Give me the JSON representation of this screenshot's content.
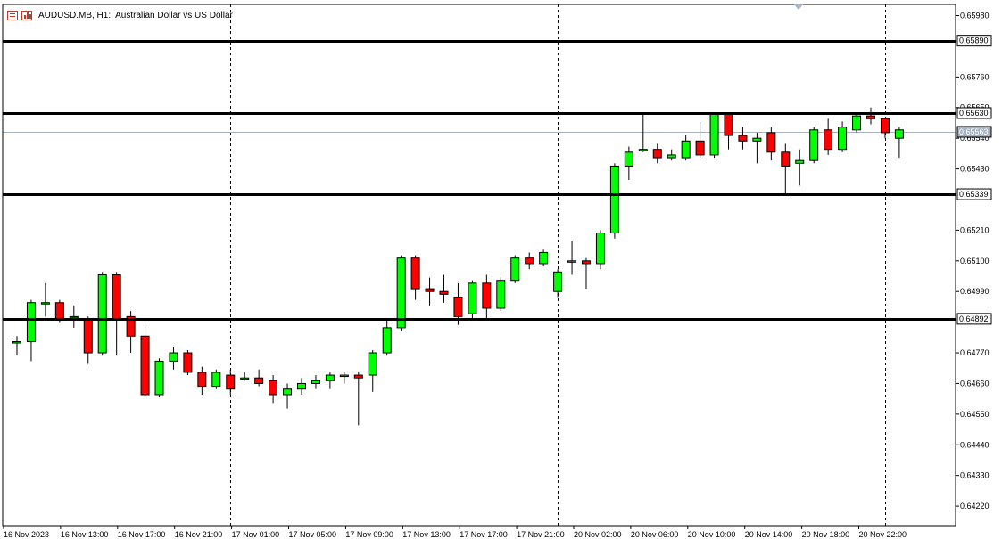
{
  "header": {
    "symbol": "AUDUSD.MB, H1:",
    "description": "Australian Dollar vs US Dollar",
    "icons": [
      "chart-properties-icon",
      "bar-chart-icon"
    ]
  },
  "colors": {
    "bull": "#00ff00",
    "bear": "#ff0000",
    "outline": "#000000",
    "background": "#ffffff",
    "grid": "#000000",
    "bid_line": "#a8b4c0"
  },
  "chart_data": {
    "type": "candlestick",
    "symbol": "AUDUSD.MB",
    "timeframe": "H1",
    "ylim": [
      0.6415,
      0.6602
    ],
    "y_ticks": [
      "0.65980",
      "0.65760",
      "0.65650",
      "0.65540",
      "0.65430",
      "0.65210",
      "0.65100",
      "0.64990",
      "0.64770",
      "0.64660",
      "0.64550",
      "0.64440",
      "0.64330",
      "0.64220"
    ],
    "x_tick_labels": [
      "16 Nov 2023",
      "16 Nov 13:00",
      "16 Nov 17:00",
      "16 Nov 21:00",
      "17 Nov 01:00",
      "17 Nov 05:00",
      "17 Nov 09:00",
      "17 Nov 13:00",
      "17 Nov 17:00",
      "17 Nov 21:00",
      "20 Nov 02:00",
      "20 Nov 06:00",
      "20 Nov 10:00",
      "20 Nov 14:00",
      "20 Nov 18:00",
      "20 Nov 22:00"
    ],
    "horizontal_levels": [
      {
        "price": 0.6589,
        "label": "0.65890"
      },
      {
        "price": 0.6563,
        "label": "0.65630"
      },
      {
        "price": 0.65339,
        "label": "0.65339"
      },
      {
        "price": 0.64892,
        "label": "0.64892"
      }
    ],
    "current_price": {
      "price": 0.65563,
      "label": "0.65563"
    },
    "period_separators_at_candle": [
      15,
      38,
      61
    ],
    "candles": [
      {
        "o": 0.6481,
        "h": 0.6483,
        "l": 0.6476,
        "c": 0.6481
      },
      {
        "o": 0.6481,
        "h": 0.6496,
        "l": 0.6474,
        "c": 0.6495
      },
      {
        "o": 0.6495,
        "h": 0.6502,
        "l": 0.649,
        "c": 0.6495
      },
      {
        "o": 0.6495,
        "h": 0.6496,
        "l": 0.6488,
        "c": 0.6489
      },
      {
        "o": 0.649,
        "h": 0.6494,
        "l": 0.6486,
        "c": 0.649
      },
      {
        "o": 0.6489,
        "h": 0.649,
        "l": 0.6473,
        "c": 0.6477
      },
      {
        "o": 0.6477,
        "h": 0.6506,
        "l": 0.6476,
        "c": 0.6505
      },
      {
        "o": 0.6505,
        "h": 0.6506,
        "l": 0.6476,
        "c": 0.6489
      },
      {
        "o": 0.649,
        "h": 0.6492,
        "l": 0.6477,
        "c": 0.6483
      },
      {
        "o": 0.6483,
        "h": 0.6487,
        "l": 0.6461,
        "c": 0.6462
      },
      {
        "o": 0.6462,
        "h": 0.6475,
        "l": 0.6461,
        "c": 0.6474
      },
      {
        "o": 0.6474,
        "h": 0.6479,
        "l": 0.6471,
        "c": 0.6477
      },
      {
        "o": 0.6477,
        "h": 0.6478,
        "l": 0.6469,
        "c": 0.647
      },
      {
        "o": 0.647,
        "h": 0.6472,
        "l": 0.6462,
        "c": 0.6465
      },
      {
        "o": 0.6465,
        "h": 0.6471,
        "l": 0.6464,
        "c": 0.647
      },
      {
        "o": 0.6469,
        "h": 0.6471,
        "l": 0.6462,
        "c": 0.6464
      },
      {
        "o": 0.6468,
        "h": 0.647,
        "l": 0.6467,
        "c": 0.6468
      },
      {
        "o": 0.6468,
        "h": 0.6471,
        "l": 0.6465,
        "c": 0.6466
      },
      {
        "o": 0.6467,
        "h": 0.6469,
        "l": 0.6459,
        "c": 0.6462
      },
      {
        "o": 0.6462,
        "h": 0.6466,
        "l": 0.6457,
        "c": 0.6464
      },
      {
        "o": 0.6464,
        "h": 0.6468,
        "l": 0.6462,
        "c": 0.6466
      },
      {
        "o": 0.6466,
        "h": 0.6469,
        "l": 0.6464,
        "c": 0.6467
      },
      {
        "o": 0.6467,
        "h": 0.647,
        "l": 0.6464,
        "c": 0.6469
      },
      {
        "o": 0.6469,
        "h": 0.647,
        "l": 0.6466,
        "c": 0.6469
      },
      {
        "o": 0.6469,
        "h": 0.647,
        "l": 0.6451,
        "c": 0.6468
      },
      {
        "o": 0.6469,
        "h": 0.6478,
        "l": 0.6463,
        "c": 0.6477
      },
      {
        "o": 0.6477,
        "h": 0.6489,
        "l": 0.6476,
        "c": 0.6486
      },
      {
        "o": 0.6486,
        "h": 0.6512,
        "l": 0.6485,
        "c": 0.6511
      },
      {
        "o": 0.6511,
        "h": 0.6512,
        "l": 0.6496,
        "c": 0.65
      },
      {
        "o": 0.65,
        "h": 0.6504,
        "l": 0.6494,
        "c": 0.6499
      },
      {
        "o": 0.6499,
        "h": 0.6505,
        "l": 0.6495,
        "c": 0.6498
      },
      {
        "o": 0.6497,
        "h": 0.6502,
        "l": 0.6487,
        "c": 0.649
      },
      {
        "o": 0.6491,
        "h": 0.6503,
        "l": 0.6489,
        "c": 0.6502
      },
      {
        "o": 0.6502,
        "h": 0.6505,
        "l": 0.6489,
        "c": 0.6493
      },
      {
        "o": 0.6493,
        "h": 0.6504,
        "l": 0.6492,
        "c": 0.6503
      },
      {
        "o": 0.6503,
        "h": 0.6512,
        "l": 0.6502,
        "c": 0.6511
      },
      {
        "o": 0.6511,
        "h": 0.6513,
        "l": 0.6507,
        "c": 0.6509
      },
      {
        "o": 0.6509,
        "h": 0.6514,
        "l": 0.6508,
        "c": 0.6513
      },
      {
        "o": 0.6499,
        "h": 0.6507,
        "l": 0.6497,
        "c": 0.6506
      },
      {
        "o": 0.651,
        "h": 0.6517,
        "l": 0.6505,
        "c": 0.651
      },
      {
        "o": 0.651,
        "h": 0.6511,
        "l": 0.65,
        "c": 0.6509
      },
      {
        "o": 0.6509,
        "h": 0.6521,
        "l": 0.6507,
        "c": 0.652
      },
      {
        "o": 0.652,
        "h": 0.6545,
        "l": 0.6518,
        "c": 0.6544
      },
      {
        "o": 0.6544,
        "h": 0.6551,
        "l": 0.6539,
        "c": 0.6549
      },
      {
        "o": 0.655,
        "h": 0.6563,
        "l": 0.6549,
        "c": 0.655
      },
      {
        "o": 0.655,
        "h": 0.6552,
        "l": 0.6545,
        "c": 0.6547
      },
      {
        "o": 0.6547,
        "h": 0.655,
        "l": 0.6546,
        "c": 0.6548
      },
      {
        "o": 0.6547,
        "h": 0.6555,
        "l": 0.6546,
        "c": 0.6553
      },
      {
        "o": 0.6553,
        "h": 0.656,
        "l": 0.6547,
        "c": 0.6548
      },
      {
        "o": 0.6548,
        "h": 0.6563,
        "l": 0.6547,
        "c": 0.6563
      },
      {
        "o": 0.6563,
        "h": 0.6563,
        "l": 0.655,
        "c": 0.6555
      },
      {
        "o": 0.6555,
        "h": 0.6558,
        "l": 0.655,
        "c": 0.6553
      },
      {
        "o": 0.6553,
        "h": 0.6556,
        "l": 0.6545,
        "c": 0.6554
      },
      {
        "o": 0.6556,
        "h": 0.6558,
        "l": 0.6546,
        "c": 0.6549
      },
      {
        "o": 0.6549,
        "h": 0.6552,
        "l": 0.6534,
        "c": 0.6544
      },
      {
        "o": 0.6545,
        "h": 0.655,
        "l": 0.6537,
        "c": 0.6546
      },
      {
        "o": 0.6546,
        "h": 0.6558,
        "l": 0.6545,
        "c": 0.6557
      },
      {
        "o": 0.6557,
        "h": 0.6561,
        "l": 0.6548,
        "c": 0.655
      },
      {
        "o": 0.655,
        "h": 0.656,
        "l": 0.6549,
        "c": 0.6558
      },
      {
        "o": 0.6557,
        "h": 0.6563,
        "l": 0.6556,
        "c": 0.6562
      },
      {
        "o": 0.6562,
        "h": 0.6565,
        "l": 0.6559,
        "c": 0.6561
      },
      {
        "o": 0.6561,
        "h": 0.6561,
        "l": 0.6554,
        "c": 0.6556
      },
      {
        "o": 0.6554,
        "h": 0.6558,
        "l": 0.6547,
        "c": 0.6557
      }
    ]
  }
}
